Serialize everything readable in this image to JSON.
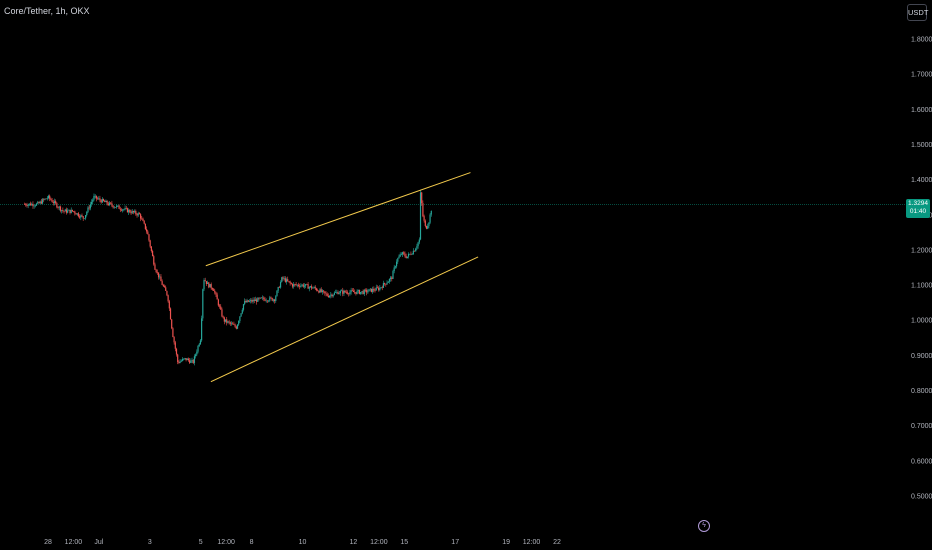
{
  "header": {
    "symbol_title": "Core/Tether, 1h, OKX",
    "currency": "USDT"
  },
  "price_badge": {
    "price": "1.3294",
    "countdown": "01:40"
  },
  "colors": {
    "up": "#26a69a",
    "down": "#ef5350",
    "channel": "#f2c94c",
    "last_price_line": "#089981",
    "background": "#000000"
  },
  "event_icon": "lightning-icon",
  "chart_data": {
    "type": "candlestick",
    "title": "Core/Tether, 1h, OKX",
    "ylim": [
      0.45,
      1.9
    ],
    "y_ticks": [
      1.8,
      1.7,
      1.6,
      1.5,
      1.4,
      1.3,
      1.2,
      1.1,
      1.0,
      0.9,
      0.8,
      0.7,
      0.6,
      0.5
    ],
    "y_tick_labels": [
      "1.8000",
      "1.7000",
      "1.6000",
      "1.5000",
      "1.4000",
      "1.3000",
      "1.2000",
      "1.1000",
      "1.0000",
      "0.9000",
      "0.8000",
      "0.7000",
      "0.6000",
      "0.5000"
    ],
    "x_ticks": [
      {
        "label": "28",
        "pos": 0.0
      },
      {
        "label": "12:00",
        "pos": 0.5
      },
      {
        "label": "Jul",
        "pos": 1.0
      },
      {
        "label": "3",
        "pos": 2.0
      },
      {
        "label": "5",
        "pos": 3.0
      },
      {
        "label": "12:00",
        "pos": 3.5
      },
      {
        "label": "8",
        "pos": 4.0
      },
      {
        "label": "10",
        "pos": 5.0
      },
      {
        "label": "12",
        "pos": 6.0
      },
      {
        "label": "12:00",
        "pos": 6.5
      },
      {
        "label": "15",
        "pos": 7.0
      },
      {
        "label": "17",
        "pos": 8.0
      },
      {
        "label": "19",
        "pos": 9.0
      },
      {
        "label": "12:00",
        "pos": 9.5
      },
      {
        "label": "22",
        "pos": 10.0
      }
    ],
    "price_path": [
      [
        -0.46,
        1.33
      ],
      [
        -0.2,
        1.33
      ],
      [
        0.0,
        1.35
      ],
      [
        0.3,
        1.31
      ],
      [
        0.5,
        1.31
      ],
      [
        0.7,
        1.29
      ],
      [
        0.8,
        1.32
      ],
      [
        0.9,
        1.35
      ],
      [
        1.2,
        1.33
      ],
      [
        1.4,
        1.32
      ],
      [
        1.6,
        1.31
      ],
      [
        1.8,
        1.3
      ],
      [
        1.95,
        1.25
      ],
      [
        2.1,
        1.15
      ],
      [
        2.25,
        1.1
      ],
      [
        2.35,
        1.07
      ],
      [
        2.45,
        0.96
      ],
      [
        2.55,
        0.88
      ],
      [
        2.7,
        0.89
      ],
      [
        2.85,
        0.88
      ],
      [
        3.0,
        0.95
      ],
      [
        3.05,
        1.12
      ],
      [
        3.15,
        1.1
      ],
      [
        3.25,
        1.09
      ],
      [
        3.45,
        1.0
      ],
      [
        3.7,
        0.98
      ],
      [
        3.85,
        1.05
      ],
      [
        4.2,
        1.06
      ],
      [
        4.45,
        1.06
      ],
      [
        4.6,
        1.12
      ],
      [
        4.8,
        1.1
      ],
      [
        5.0,
        1.1
      ],
      [
        5.25,
        1.09
      ],
      [
        5.5,
        1.07
      ],
      [
        5.7,
        1.08
      ],
      [
        5.9,
        1.08
      ],
      [
        6.0,
        1.08
      ],
      [
        6.2,
        1.08
      ],
      [
        6.5,
        1.09
      ],
      [
        6.75,
        1.12
      ],
      [
        6.85,
        1.17
      ],
      [
        6.95,
        1.19
      ],
      [
        7.05,
        1.18
      ],
      [
        7.2,
        1.2
      ],
      [
        7.3,
        1.23
      ],
      [
        7.32,
        1.37
      ],
      [
        7.36,
        1.3
      ],
      [
        7.42,
        1.26
      ],
      [
        7.48,
        1.28
      ],
      [
        7.55,
        1.3294
      ]
    ],
    "last_price": 1.3294,
    "annotations": [
      {
        "type": "trendline",
        "name": "upper-channel",
        "points": [
          [
            3.1,
            1.155
          ],
          [
            8.3,
            1.42
          ]
        ]
      },
      {
        "type": "trendline",
        "name": "lower-channel",
        "points": [
          [
            3.2,
            0.825
          ],
          [
            8.45,
            1.18
          ]
        ]
      }
    ],
    "grid": false
  }
}
